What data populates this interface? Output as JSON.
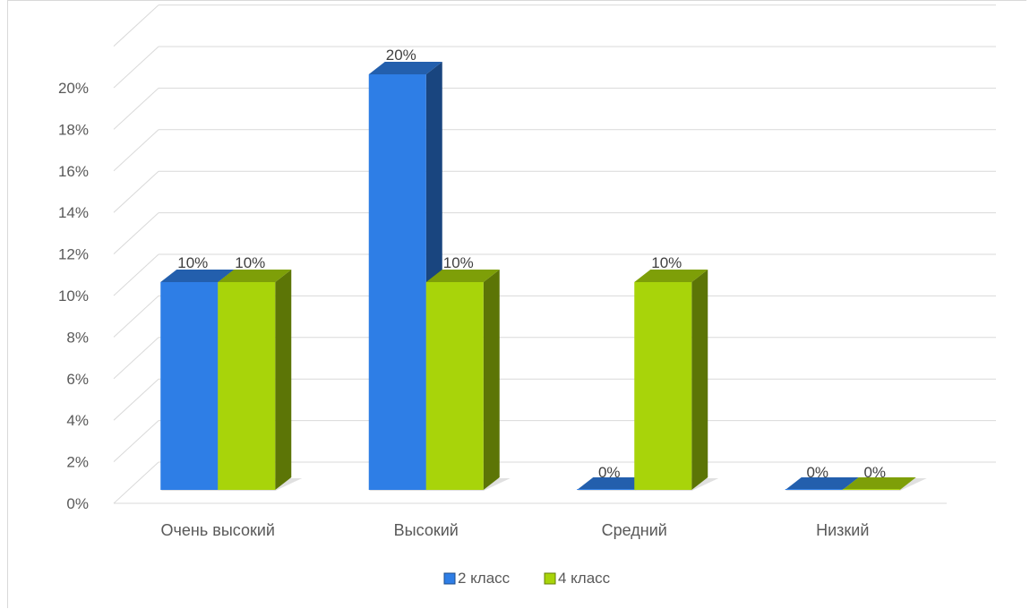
{
  "chart_data": {
    "type": "bar",
    "categories": [
      "Очень высокий",
      "Высокий",
      "Средний",
      "Низкий"
    ],
    "series": [
      {
        "name": "2 класс",
        "values": [
          10,
          20,
          0,
          0
        ],
        "color": "#2e7ee6"
      },
      {
        "name": "4 класс",
        "values": [
          10,
          10,
          10,
          0
        ],
        "color": "#a8d40a"
      }
    ],
    "data_labels": [
      [
        "10%",
        "20%",
        "0%",
        "0%"
      ],
      [
        "10%",
        "10%",
        "10%",
        "0%"
      ]
    ],
    "y_ticks": [
      "0%",
      "2%",
      "4%",
      "6%",
      "8%",
      "10%",
      "12%",
      "14%",
      "16%",
      "18%",
      "20%"
    ],
    "ylim": [
      0,
      22
    ],
    "style": "3d-clustered-column",
    "grid": true,
    "legend_position": "bottom"
  }
}
